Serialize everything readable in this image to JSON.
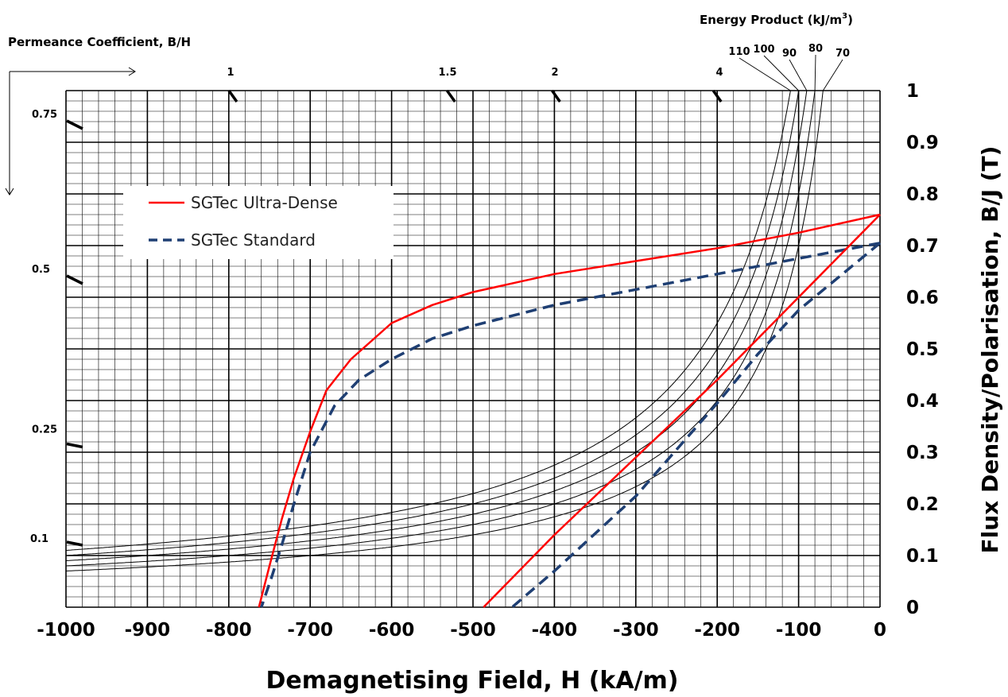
{
  "chart_data": {
    "type": "line",
    "xlabel": "Demagnetising Field, H (kA/m)",
    "ylabel": "Flux Density/Polarisation, B/J (T)",
    "xlim": [
      -1000,
      0
    ],
    "ylim": [
      0,
      1
    ],
    "x_ticks": [
      "-1000",
      "-900",
      "-800",
      "-700",
      "-600",
      "-500",
      "-400",
      "-300",
      "-200",
      "-100",
      "0"
    ],
    "y_ticks": [
      "0",
      "0.1",
      "0.2",
      "0.3",
      "0.4",
      "0.5",
      "0.6",
      "0.7",
      "0.8",
      "0.9",
      "1"
    ],
    "grid": true,
    "legend_position": "upper-left",
    "series": [
      {
        "name": "SGTec Ultra-Dense",
        "color": "#ff0000",
        "style": "solid",
        "kind": "J-curve",
        "x": [
          0,
          -100,
          -200,
          -300,
          -400,
          -500,
          -550,
          -600,
          -650,
          -680,
          -700,
          -720,
          -735,
          -750,
          -763
        ],
        "y": [
          0.76,
          0.725,
          0.695,
          0.67,
          0.645,
          0.61,
          0.585,
          0.55,
          0.48,
          0.42,
          0.34,
          0.25,
          0.17,
          0.08,
          0
        ]
      },
      {
        "name": "SGTec Standard",
        "color": "#1f3f73",
        "style": "dashed",
        "kind": "J-curve",
        "x": [
          0,
          -100,
          -200,
          -300,
          -400,
          -450,
          -500,
          -550,
          -600,
          -640,
          -670,
          -700,
          -720,
          -735,
          -747,
          -760
        ],
        "y": [
          0.705,
          0.675,
          0.645,
          0.615,
          0.585,
          0.565,
          0.545,
          0.52,
          0.48,
          0.44,
          0.39,
          0.3,
          0.2,
          0.12,
          0.06,
          0
        ]
      },
      {
        "name": "SGTec Ultra-Dense",
        "color": "#ff0000",
        "style": "solid",
        "kind": "B-curve",
        "x": [
          0,
          -100,
          -200,
          -300,
          -400,
          -487
        ],
        "y": [
          0.76,
          0.6,
          0.44,
          0.29,
          0.14,
          0
        ]
      },
      {
        "name": "SGTec Standard",
        "color": "#1f3f73",
        "style": "dashed",
        "kind": "B-curve",
        "x": [
          0,
          -100,
          -150,
          -200,
          -300,
          -400,
          -452
        ],
        "y": [
          0.705,
          0.575,
          0.49,
          0.395,
          0.215,
          0.07,
          0
        ]
      }
    ],
    "energy_product": {
      "title": "Energy Product (kJ/m",
      "title_sup": "3",
      "title_end": ")",
      "labels": [
        "110",
        "100",
        "90",
        "80",
        "70"
      ],
      "values": [
        110,
        100,
        90,
        80,
        70
      ]
    },
    "permeance": {
      "title": "Permeance Coefficient, B/H",
      "top_labels": [
        "1",
        "1.5",
        "2",
        "4"
      ],
      "top_values": [
        1,
        1.5,
        2,
        4
      ],
      "left_labels": [
        "0.75",
        "0.5",
        "0.25",
        "0.1"
      ],
      "left_values": [
        0.75,
        0.5,
        0.25,
        0.1
      ]
    },
    "legend": {
      "ultra_dense": "SGTec Ultra-Dense",
      "standard": "SGTec Standard"
    }
  }
}
